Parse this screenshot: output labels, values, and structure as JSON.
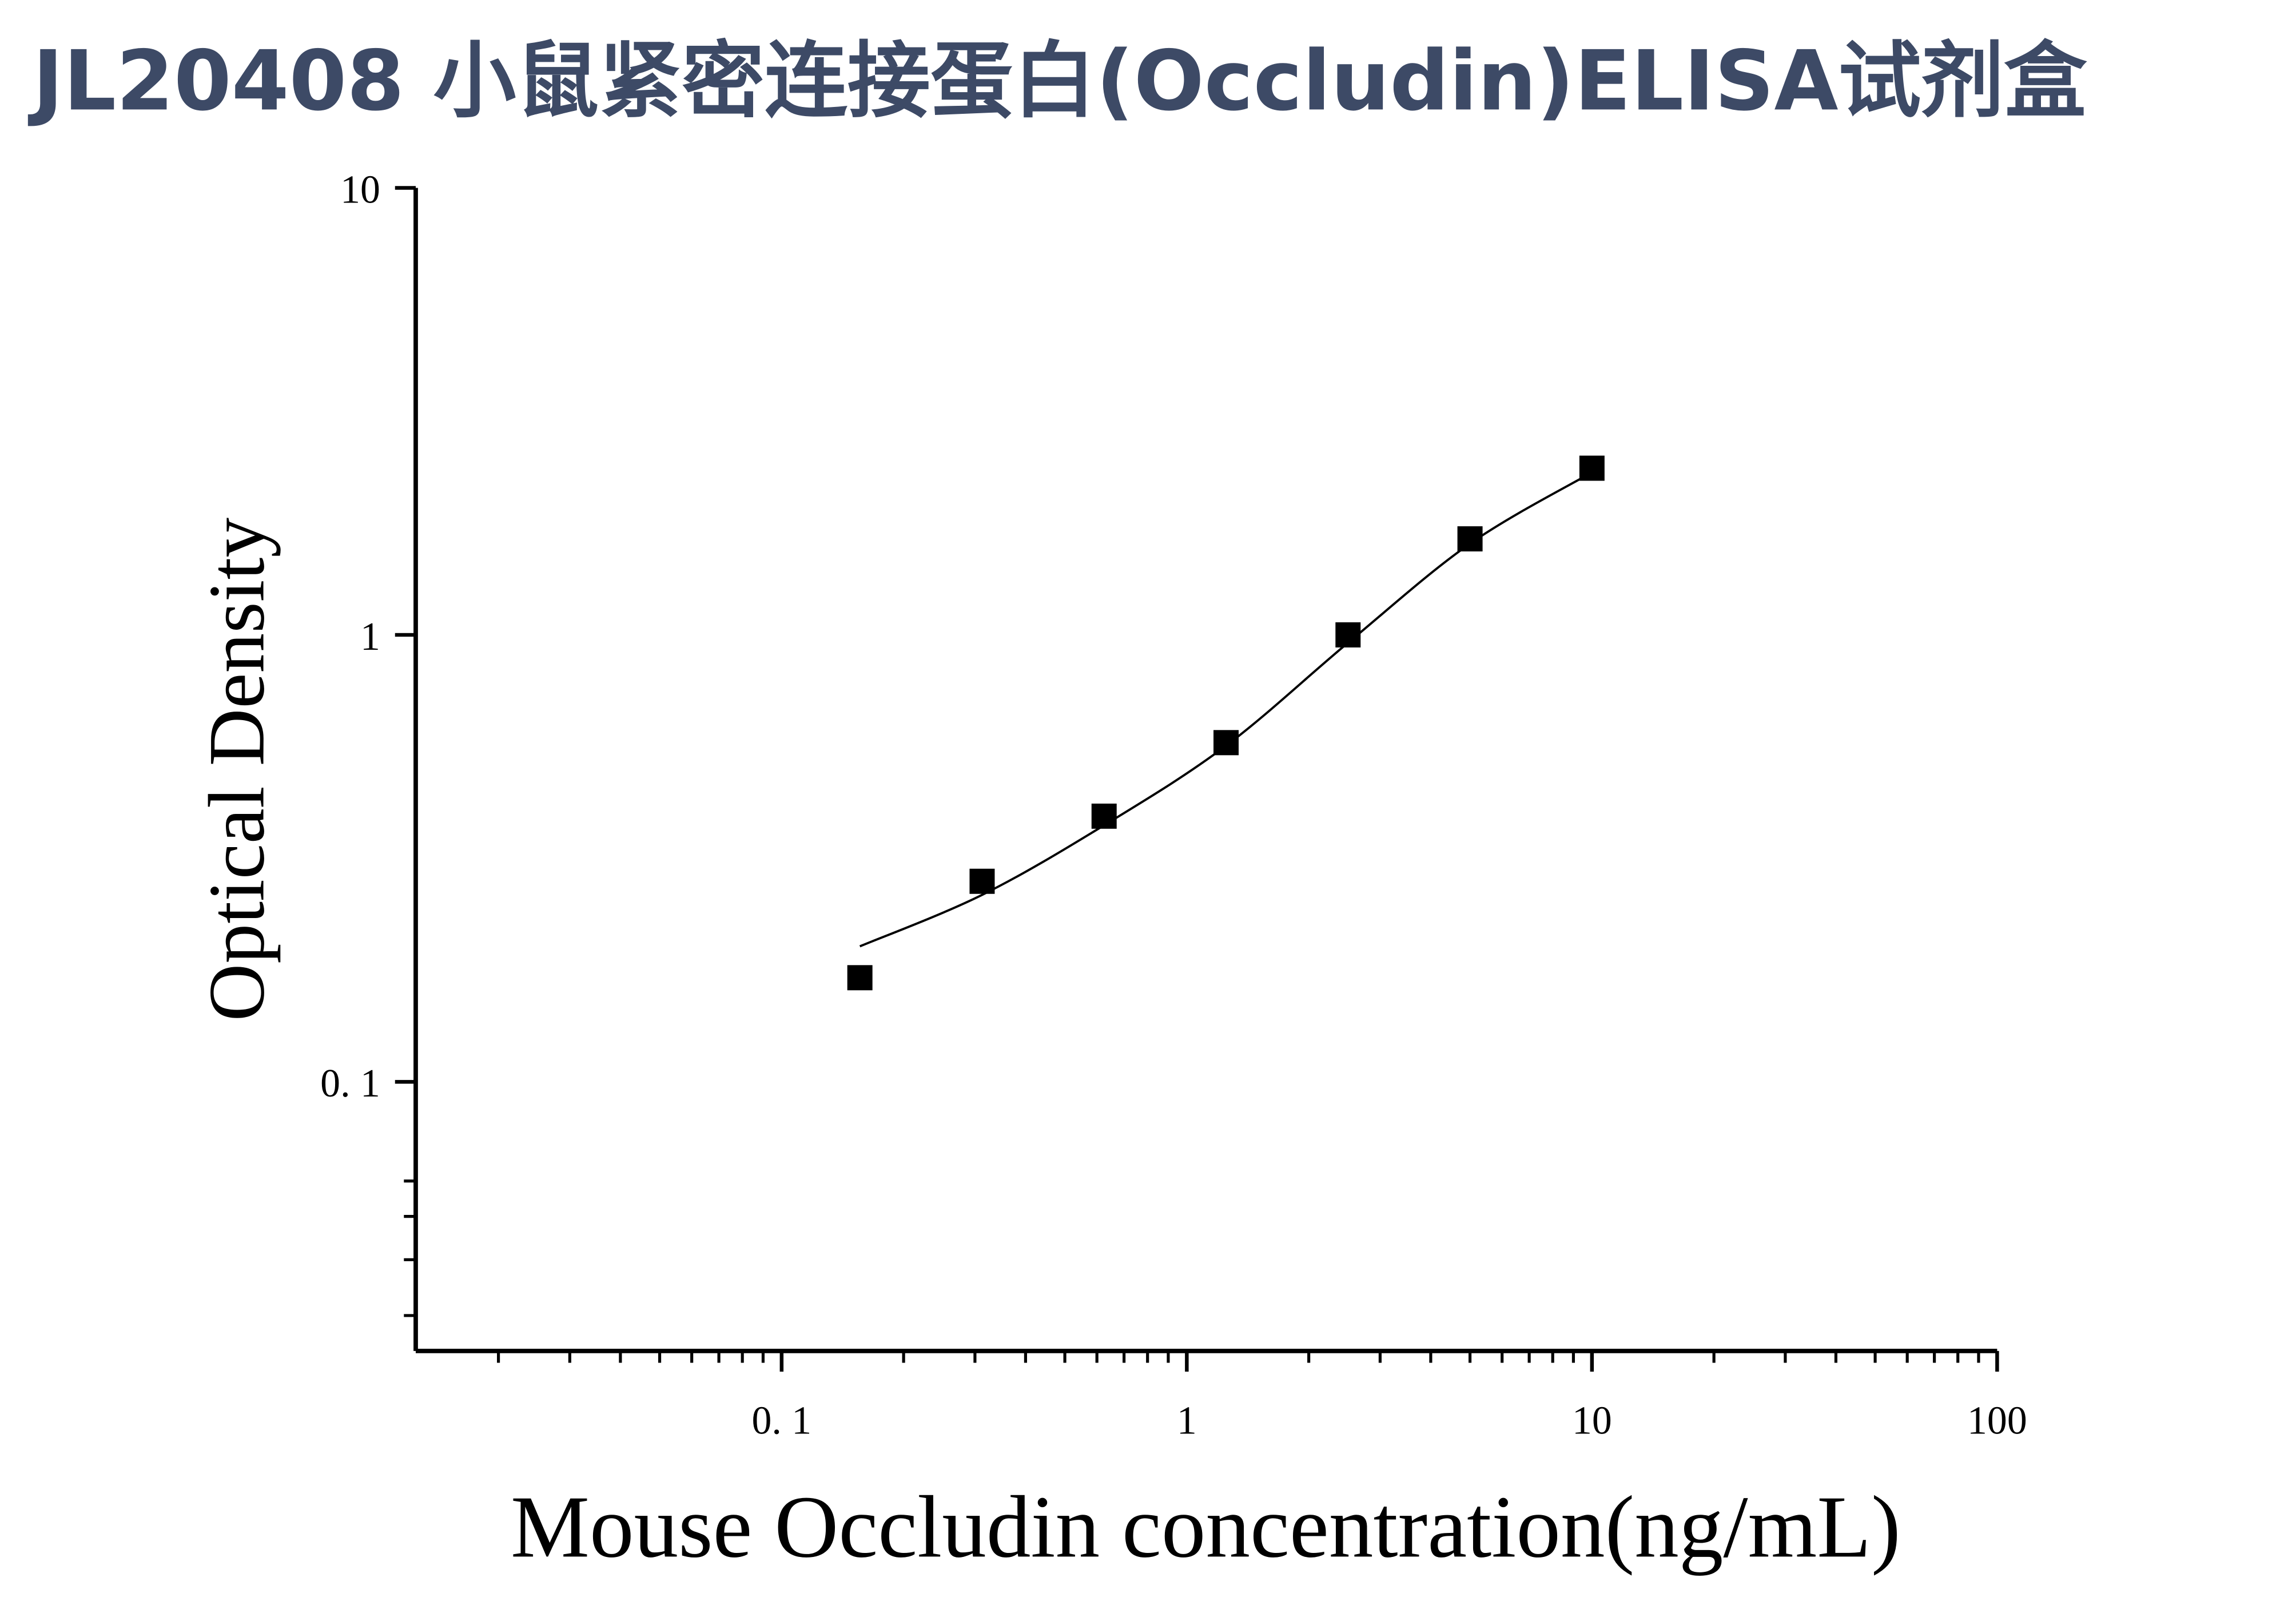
{
  "chart_data": {
    "type": "scatter",
    "title": "JL20408 小鼠紧密连接蛋白(Occludin)ELISA试剂盒",
    "x_label": "Mouse Occludin concentration(ng/mL)",
    "y_label": "Optical Density",
    "x_log": true,
    "y_log": true,
    "xlim": [
      0.0125,
      100
    ],
    "ylim": [
      0.025,
      10
    ],
    "xticks": [
      {
        "value": 0.1,
        "label": "0. 1"
      },
      1,
      10,
      100
    ],
    "yticks": [
      {
        "value": 0.1,
        "label": "0. 1"
      },
      1,
      10
    ],
    "xminor_ticks": [
      0.02,
      0.03,
      0.04,
      0.05,
      0.06,
      0.07,
      0.08,
      0.09,
      0.2,
      0.3,
      0.4,
      0.5,
      0.6,
      0.7,
      0.8,
      0.9,
      2,
      3,
      4,
      5,
      6,
      7,
      8,
      9,
      20,
      30,
      40,
      50,
      60,
      70,
      80,
      90
    ],
    "yminor_ticks": [
      0.03,
      0.04,
      0.05,
      0.06
    ],
    "series": [
      {
        "color": "#000000",
        "x": [
          0.156,
          0.3125,
          0.625,
          1.25,
          2.5,
          5,
          10
        ],
        "values": [
          0.171,
          0.281,
          0.393,
          0.574,
          1.0,
          1.64,
          2.36
        ]
      }
    ],
    "fit": {
      "color": "#000000",
      "x": [
        0.156,
        0.3125,
        0.625,
        1.25,
        2.5,
        5,
        10
      ],
      "values": [
        0.201,
        0.262,
        0.375,
        0.565,
        0.96,
        1.6,
        2.31
      ]
    }
  }
}
